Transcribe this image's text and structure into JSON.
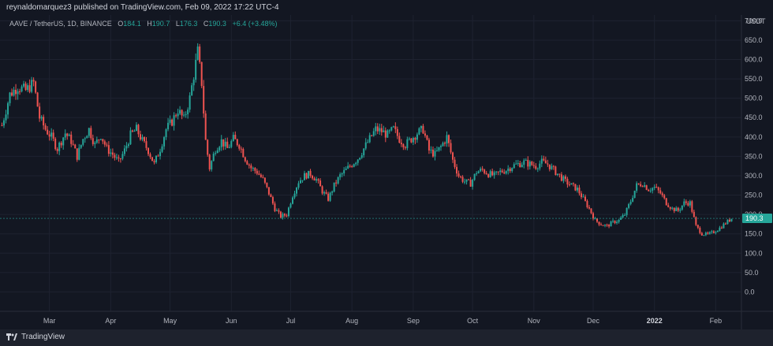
{
  "header": {
    "published": "reynaldomarquez3 published on TradingView.com, Feb 09, 2022 17:22 UTC-4"
  },
  "legend": {
    "symbol": "AAVE / TetherUS, 1D, BINANCE",
    "o_label": "O",
    "o_value": "184.1",
    "h_label": "H",
    "h_value": "190.7",
    "l_label": "L",
    "l_value": "176.3",
    "c_label": "C",
    "c_value": "190.3",
    "change": "+6.4 (+3.48%)"
  },
  "footer": {
    "brand": "TradingView"
  },
  "colors": {
    "up": "#26a69a",
    "down": "#ef5350",
    "background": "#131722",
    "grid": "#1e2230",
    "text": "#b2b5be"
  },
  "chart_data": {
    "type": "candlestick",
    "currency": "USDT",
    "last_price_label": "190.3",
    "ylim": [
      -50,
      715
    ],
    "y_ticks": [
      0,
      50,
      100,
      150,
      200,
      250,
      300,
      350,
      400,
      450,
      500,
      550,
      600,
      650,
      700
    ],
    "y_tick_labels": [
      "0.0",
      "50.0",
      "100.0",
      "150.0",
      "200.0",
      "250.0",
      "300.0",
      "350.0",
      "400.0",
      "450.0",
      "500.0",
      "550.0",
      "600.0",
      "650.0",
      "700.0"
    ],
    "x_ticks": [
      "2021-03-01",
      "2021-04-01",
      "2021-05-01",
      "2021-06-01",
      "2021-07-01",
      "2021-08-01",
      "2021-09-01",
      "2021-10-01",
      "2021-11-01",
      "2021-12-01",
      "2022-01-01",
      "2022-02-01"
    ],
    "x_tick_labels": [
      "Mar",
      "Apr",
      "May",
      "Jun",
      "Jul",
      "Aug",
      "Sep",
      "Oct",
      "Nov",
      "Dec",
      "2022",
      "Feb"
    ],
    "x_range": [
      "2021-02-04",
      "2022-02-14"
    ],
    "series": [
      {
        "name": "AAVE / TetherUS",
        "points": [
          [
            "2021-02-05",
            430
          ],
          [
            "2021-02-09",
            510
          ],
          [
            "2021-02-13",
            530
          ],
          [
            "2021-02-17",
            520
          ],
          [
            "2021-02-21",
            540
          ],
          [
            "2021-02-24",
            450
          ],
          [
            "2021-02-27",
            420
          ],
          [
            "2021-03-02",
            400
          ],
          [
            "2021-03-05",
            370
          ],
          [
            "2021-03-09",
            410
          ],
          [
            "2021-03-12",
            390
          ],
          [
            "2021-03-15",
            350
          ],
          [
            "2021-03-18",
            395
          ],
          [
            "2021-03-21",
            420
          ],
          [
            "2021-03-24",
            380
          ],
          [
            "2021-03-27",
            405
          ],
          [
            "2021-03-30",
            370
          ],
          [
            "2021-04-02",
            355
          ],
          [
            "2021-04-05",
            335
          ],
          [
            "2021-04-08",
            365
          ],
          [
            "2021-04-11",
            405
          ],
          [
            "2021-04-14",
            420
          ],
          [
            "2021-04-17",
            390
          ],
          [
            "2021-04-20",
            365
          ],
          [
            "2021-04-23",
            330
          ],
          [
            "2021-04-26",
            370
          ],
          [
            "2021-04-29",
            420
          ],
          [
            "2021-05-02",
            440
          ],
          [
            "2021-05-05",
            470
          ],
          [
            "2021-05-08",
            445
          ],
          [
            "2021-05-11",
            500
          ],
          [
            "2021-05-13",
            560
          ],
          [
            "2021-05-15",
            620
          ],
          [
            "2021-05-17",
            540
          ],
          [
            "2021-05-19",
            390
          ],
          [
            "2021-05-21",
            320
          ],
          [
            "2021-05-24",
            370
          ],
          [
            "2021-05-27",
            390
          ],
          [
            "2021-05-30",
            370
          ],
          [
            "2021-06-02",
            395
          ],
          [
            "2021-06-05",
            380
          ],
          [
            "2021-06-08",
            345
          ],
          [
            "2021-06-11",
            320
          ],
          [
            "2021-06-14",
            310
          ],
          [
            "2021-06-17",
            290
          ],
          [
            "2021-06-20",
            255
          ],
          [
            "2021-06-23",
            215
          ],
          [
            "2021-06-26",
            195
          ],
          [
            "2021-06-29",
            200
          ],
          [
            "2021-07-02",
            250
          ],
          [
            "2021-07-05",
            285
          ],
          [
            "2021-07-08",
            300
          ],
          [
            "2021-07-11",
            305
          ],
          [
            "2021-07-14",
            290
          ],
          [
            "2021-07-17",
            260
          ],
          [
            "2021-07-20",
            240
          ],
          [
            "2021-07-23",
            275
          ],
          [
            "2021-07-26",
            300
          ],
          [
            "2021-07-29",
            315
          ],
          [
            "2021-08-01",
            330
          ],
          [
            "2021-08-04",
            345
          ],
          [
            "2021-08-07",
            370
          ],
          [
            "2021-08-10",
            395
          ],
          [
            "2021-08-13",
            420
          ],
          [
            "2021-08-16",
            415
          ],
          [
            "2021-08-19",
            405
          ],
          [
            "2021-08-22",
            420
          ],
          [
            "2021-08-25",
            395
          ],
          [
            "2021-08-28",
            380
          ],
          [
            "2021-08-31",
            395
          ],
          [
            "2021-09-03",
            410
          ],
          [
            "2021-09-06",
            420
          ],
          [
            "2021-09-09",
            365
          ],
          [
            "2021-09-12",
            355
          ],
          [
            "2021-09-15",
            375
          ],
          [
            "2021-09-18",
            400
          ],
          [
            "2021-09-21",
            340
          ],
          [
            "2021-09-24",
            300
          ],
          [
            "2021-09-27",
            285
          ],
          [
            "2021-09-30",
            280
          ],
          [
            "2021-10-03",
            310
          ],
          [
            "2021-10-06",
            315
          ],
          [
            "2021-10-09",
            305
          ],
          [
            "2021-10-12",
            300
          ],
          [
            "2021-10-15",
            310
          ],
          [
            "2021-10-18",
            315
          ],
          [
            "2021-10-21",
            325
          ],
          [
            "2021-10-24",
            330
          ],
          [
            "2021-10-27",
            335
          ],
          [
            "2021-10-30",
            330
          ],
          [
            "2021-11-02",
            325
          ],
          [
            "2021-11-05",
            335
          ],
          [
            "2021-11-08",
            330
          ],
          [
            "2021-11-11",
            315
          ],
          [
            "2021-11-14",
            300
          ],
          [
            "2021-11-17",
            285
          ],
          [
            "2021-11-20",
            275
          ],
          [
            "2021-11-23",
            265
          ],
          [
            "2021-11-26",
            240
          ],
          [
            "2021-11-29",
            215
          ],
          [
            "2021-12-02",
            185
          ],
          [
            "2021-12-05",
            175
          ],
          [
            "2021-12-08",
            170
          ],
          [
            "2021-12-11",
            180
          ],
          [
            "2021-12-14",
            185
          ],
          [
            "2021-12-17",
            200
          ],
          [
            "2021-12-20",
            235
          ],
          [
            "2021-12-23",
            275
          ],
          [
            "2021-12-26",
            280
          ],
          [
            "2021-12-29",
            265
          ],
          [
            "2022-01-01",
            270
          ],
          [
            "2022-01-04",
            255
          ],
          [
            "2022-01-07",
            230
          ],
          [
            "2022-01-10",
            215
          ],
          [
            "2022-01-13",
            210
          ],
          [
            "2022-01-16",
            230
          ],
          [
            "2022-01-19",
            230
          ],
          [
            "2022-01-22",
            170
          ],
          [
            "2022-01-25",
            150
          ],
          [
            "2022-01-28",
            148
          ],
          [
            "2022-01-31",
            155
          ],
          [
            "2022-02-03",
            165
          ],
          [
            "2022-02-06",
            178
          ],
          [
            "2022-02-09",
            190
          ]
        ]
      }
    ]
  }
}
